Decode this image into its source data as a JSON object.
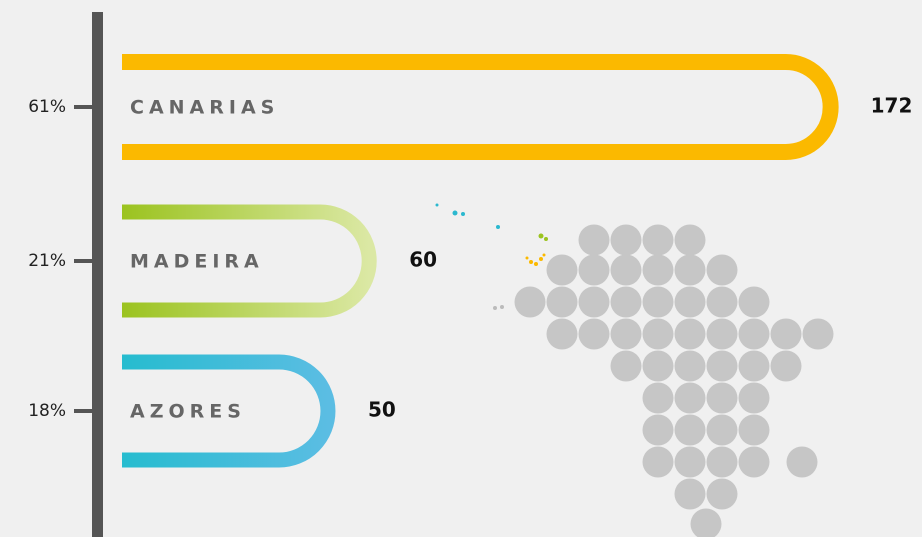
{
  "chart_data": {
    "type": "bar",
    "categories": [
      "CANARIAS",
      "MADEIRA",
      "AZORES"
    ],
    "values": [
      172,
      60,
      50
    ],
    "shares": [
      61,
      21,
      18
    ],
    "share_labels": [
      "61%",
      "21%",
      "18%"
    ],
    "colors": [
      [
        "#fbb900",
        "#fbb900"
      ],
      [
        "#9bc31f",
        "#dbe8a4"
      ],
      [
        "#26bccf",
        "#5bbde3"
      ]
    ]
  }
}
